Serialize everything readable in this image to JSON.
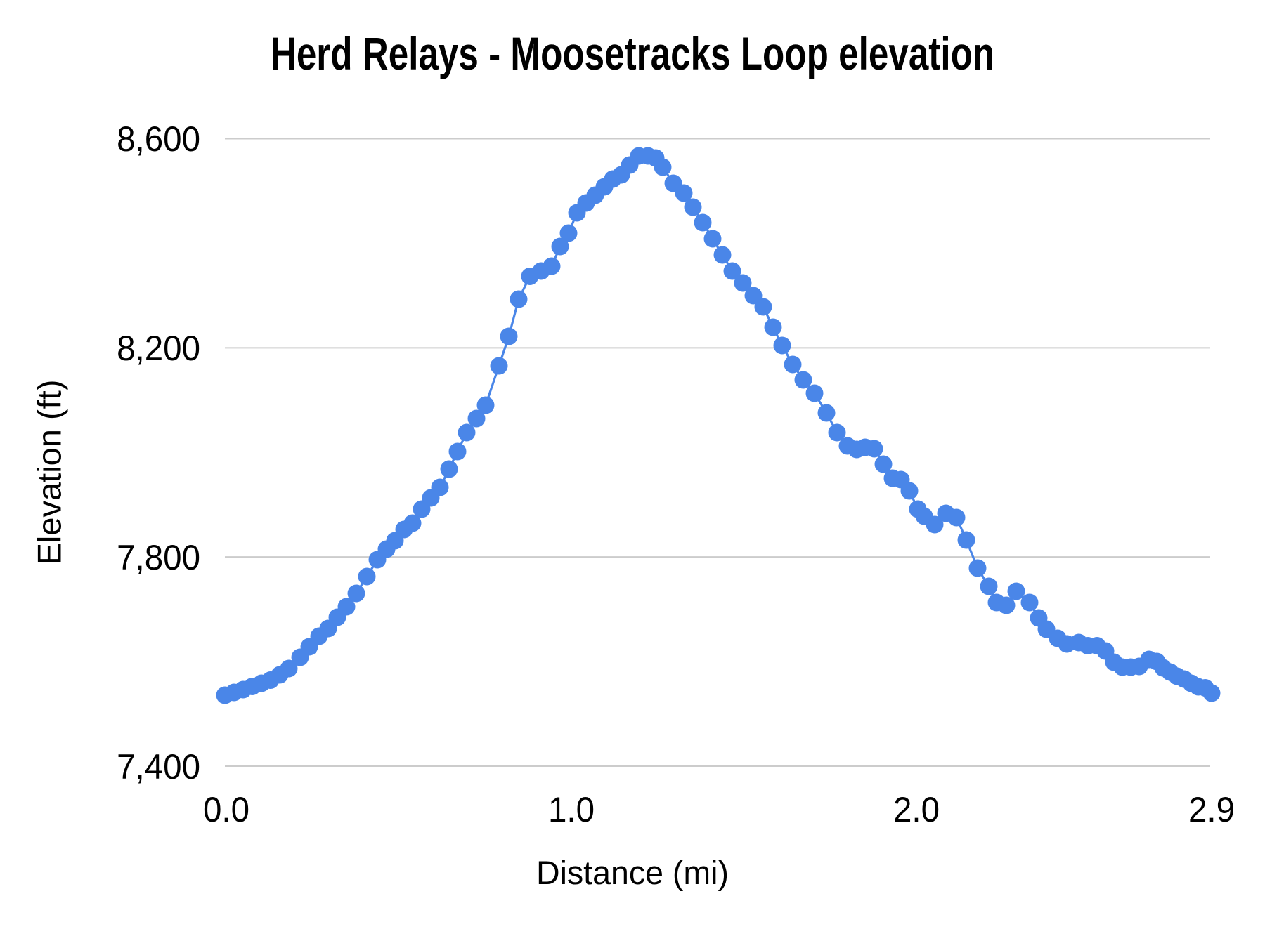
{
  "chart_data": {
    "type": "scatter",
    "title": "Herd Relays - Moosetracks Loop elevation",
    "xlabel": "Distance (mi)",
    "ylabel": "Elevation (ft)",
    "xlim": [
      0,
      2.854
    ],
    "ylim": [
      7400,
      8600
    ],
    "x_ticks": [
      {
        "value": 0.0,
        "label": "0.0"
      },
      {
        "value": 1.0,
        "label": "1.0"
      },
      {
        "value": 2.0,
        "label": "2.0"
      },
      {
        "value": 2.854,
        "label": "2.9"
      }
    ],
    "y_ticks": [
      {
        "value": 7400,
        "label": "7,400"
      },
      {
        "value": 7800,
        "label": "7,800"
      },
      {
        "value": 8200,
        "label": "8,200"
      },
      {
        "value": 8600,
        "label": "8,600"
      }
    ],
    "grid": "horizontal",
    "legend_position": "none",
    "series": [
      {
        "name": "Elevation",
        "color": "#4a86e8",
        "marker": "circle",
        "points": [
          [
            0.0,
            7535.6
          ],
          [
            0.0265,
            7541.0
          ],
          [
            0.0529,
            7546.4
          ],
          [
            0.0794,
            7552.4
          ],
          [
            0.1059,
            7558.5
          ],
          [
            0.1323,
            7564.5
          ],
          [
            0.1588,
            7574.6
          ],
          [
            0.1852,
            7586.7
          ],
          [
            0.2178,
            7608.2
          ],
          [
            0.2443,
            7628.3
          ],
          [
            0.2728,
            7648.5
          ],
          [
            0.2992,
            7663.2
          ],
          [
            0.3257,
            7684.7
          ],
          [
            0.3522,
            7704.9
          ],
          [
            0.3807,
            7730.4
          ],
          [
            0.4112,
            7762.6
          ],
          [
            0.4417,
            7794.9
          ],
          [
            0.4682,
            7815.0
          ],
          [
            0.4926,
            7831.1
          ],
          [
            0.5191,
            7852.6
          ],
          [
            0.5435,
            7864.7
          ],
          [
            0.57,
            7891.6
          ],
          [
            0.5964,
            7913.0
          ],
          [
            0.6229,
            7933.2
          ],
          [
            0.6494,
            7968.1
          ],
          [
            0.6738,
            8001.7
          ],
          [
            0.7003,
            8037.9
          ],
          [
            0.7288,
            8064.8
          ],
          [
            0.7552,
            8090.3
          ],
          [
            0.7939,
            8165.5
          ],
          [
            0.8224,
            8221.9
          ],
          [
            0.8509,
            8293.1
          ],
          [
            0.8835,
            8336.8
          ],
          [
            0.916,
            8346.8
          ],
          [
            0.9466,
            8356.2
          ],
          [
            0.971,
            8393.8
          ],
          [
            0.9954,
            8419.4
          ],
          [
            1.0199,
            8458.3
          ],
          [
            1.0463,
            8477.1
          ],
          [
            1.0728,
            8491.9
          ],
          [
            1.0993,
            8508.0
          ],
          [
            1.1237,
            8522.8
          ],
          [
            1.1481,
            8530.8
          ],
          [
            1.1725,
            8549.6
          ],
          [
            1.199,
            8567.1
          ],
          [
            1.2255,
            8567.1
          ],
          [
            1.2479,
            8563.1
          ],
          [
            1.2682,
            8545.6
          ],
          [
            1.2988,
            8514.7
          ],
          [
            1.3293,
            8495.9
          ],
          [
            1.3558,
            8469.1
          ],
          [
            1.3843,
            8439.5
          ],
          [
            1.4128,
            8408.6
          ],
          [
            1.4412,
            8377.7
          ],
          [
            1.4697,
            8346.8
          ],
          [
            1.5003,
            8324.0
          ],
          [
            1.5308,
            8299.8
          ],
          [
            1.5593,
            8278.3
          ],
          [
            1.5878,
            8239.4
          ],
          [
            1.6143,
            8204.5
          ],
          [
            1.6448,
            8168.2
          ],
          [
            1.6754,
            8138.7
          ],
          [
            1.7079,
            8113.2
          ],
          [
            1.7425,
            8075.5
          ],
          [
            1.7731,
            8037.9
          ],
          [
            1.8036,
            8012.4
          ],
          [
            1.8301,
            8005.7
          ],
          [
            1.8545,
            8009.7
          ],
          [
            1.881,
            8007.1
          ],
          [
            1.9074,
            7977.5
          ],
          [
            1.9339,
            7950.6
          ],
          [
            1.9583,
            7948.0
          ],
          [
            1.9827,
            7926.5
          ],
          [
            2.0072,
            7891.6
          ],
          [
            2.0255,
            7878.1
          ],
          [
            2.056,
            7862.0
          ],
          [
            2.0886,
            7883.5
          ],
          [
            2.1191,
            7875.4
          ],
          [
            2.1476,
            7832.5
          ],
          [
            2.1802,
            7778.7
          ],
          [
            2.2128,
            7743.8
          ],
          [
            2.2352,
            7712.9
          ],
          [
            2.2637,
            7707.6
          ],
          [
            2.2922,
            7734.4
          ],
          [
            2.3308,
            7712.9
          ],
          [
            2.3573,
            7683.4
          ],
          [
            2.3797,
            7661.9
          ],
          [
            2.4123,
            7644.4
          ],
          [
            2.4387,
            7633.7
          ],
          [
            2.4733,
            7636.4
          ],
          [
            2.4998,
            7630.3
          ],
          [
            2.5263,
            7630.3
          ],
          [
            2.5507,
            7620.3
          ],
          [
            2.5751,
            7598.8
          ],
          [
            2.5995,
            7589.4
          ],
          [
            2.624,
            7589.4
          ],
          [
            2.6484,
            7590.7
          ],
          [
            2.6769,
            7604.1
          ],
          [
            2.6993,
            7600.1
          ],
          [
            2.7176,
            7588.0
          ],
          [
            2.738,
            7580.0
          ],
          [
            2.7583,
            7571.9
          ],
          [
            2.7787,
            7566.5
          ],
          [
            2.799,
            7558.5
          ],
          [
            2.8194,
            7551.8
          ],
          [
            2.8398,
            7549.7
          ],
          [
            2.8581,
            7539.7
          ]
        ]
      }
    ]
  },
  "style": {
    "series_color": "#4a86e8",
    "gridline_color": "#cccccc",
    "text_color": "#000000",
    "background_color": "#ffffff"
  }
}
